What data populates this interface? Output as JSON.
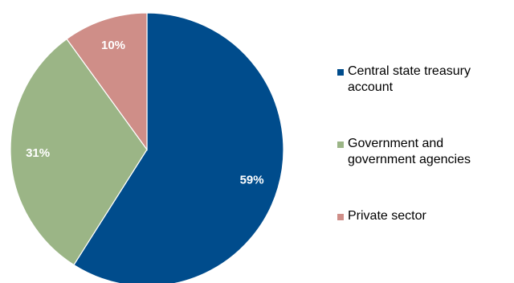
{
  "chart_data": {
    "type": "pie",
    "categories": [
      "Central state treasury account",
      "Government and government agencies",
      "Private sector"
    ],
    "values": [
      59,
      31,
      10
    ],
    "value_labels": [
      "59%",
      "31%",
      "10%"
    ],
    "colors": [
      "#004c8c",
      "#9bb586",
      "#cf8e88"
    ],
    "title": "",
    "legend_placement": "right",
    "start_angle": "12 o'clock, clockwise"
  },
  "legend": {
    "items": [
      {
        "label": "Central state treasury account",
        "color": "#004c8c"
      },
      {
        "label": "Government and government agencies",
        "color": "#9bb586"
      },
      {
        "label": "Private sector",
        "color": "#cf8e88"
      }
    ]
  }
}
